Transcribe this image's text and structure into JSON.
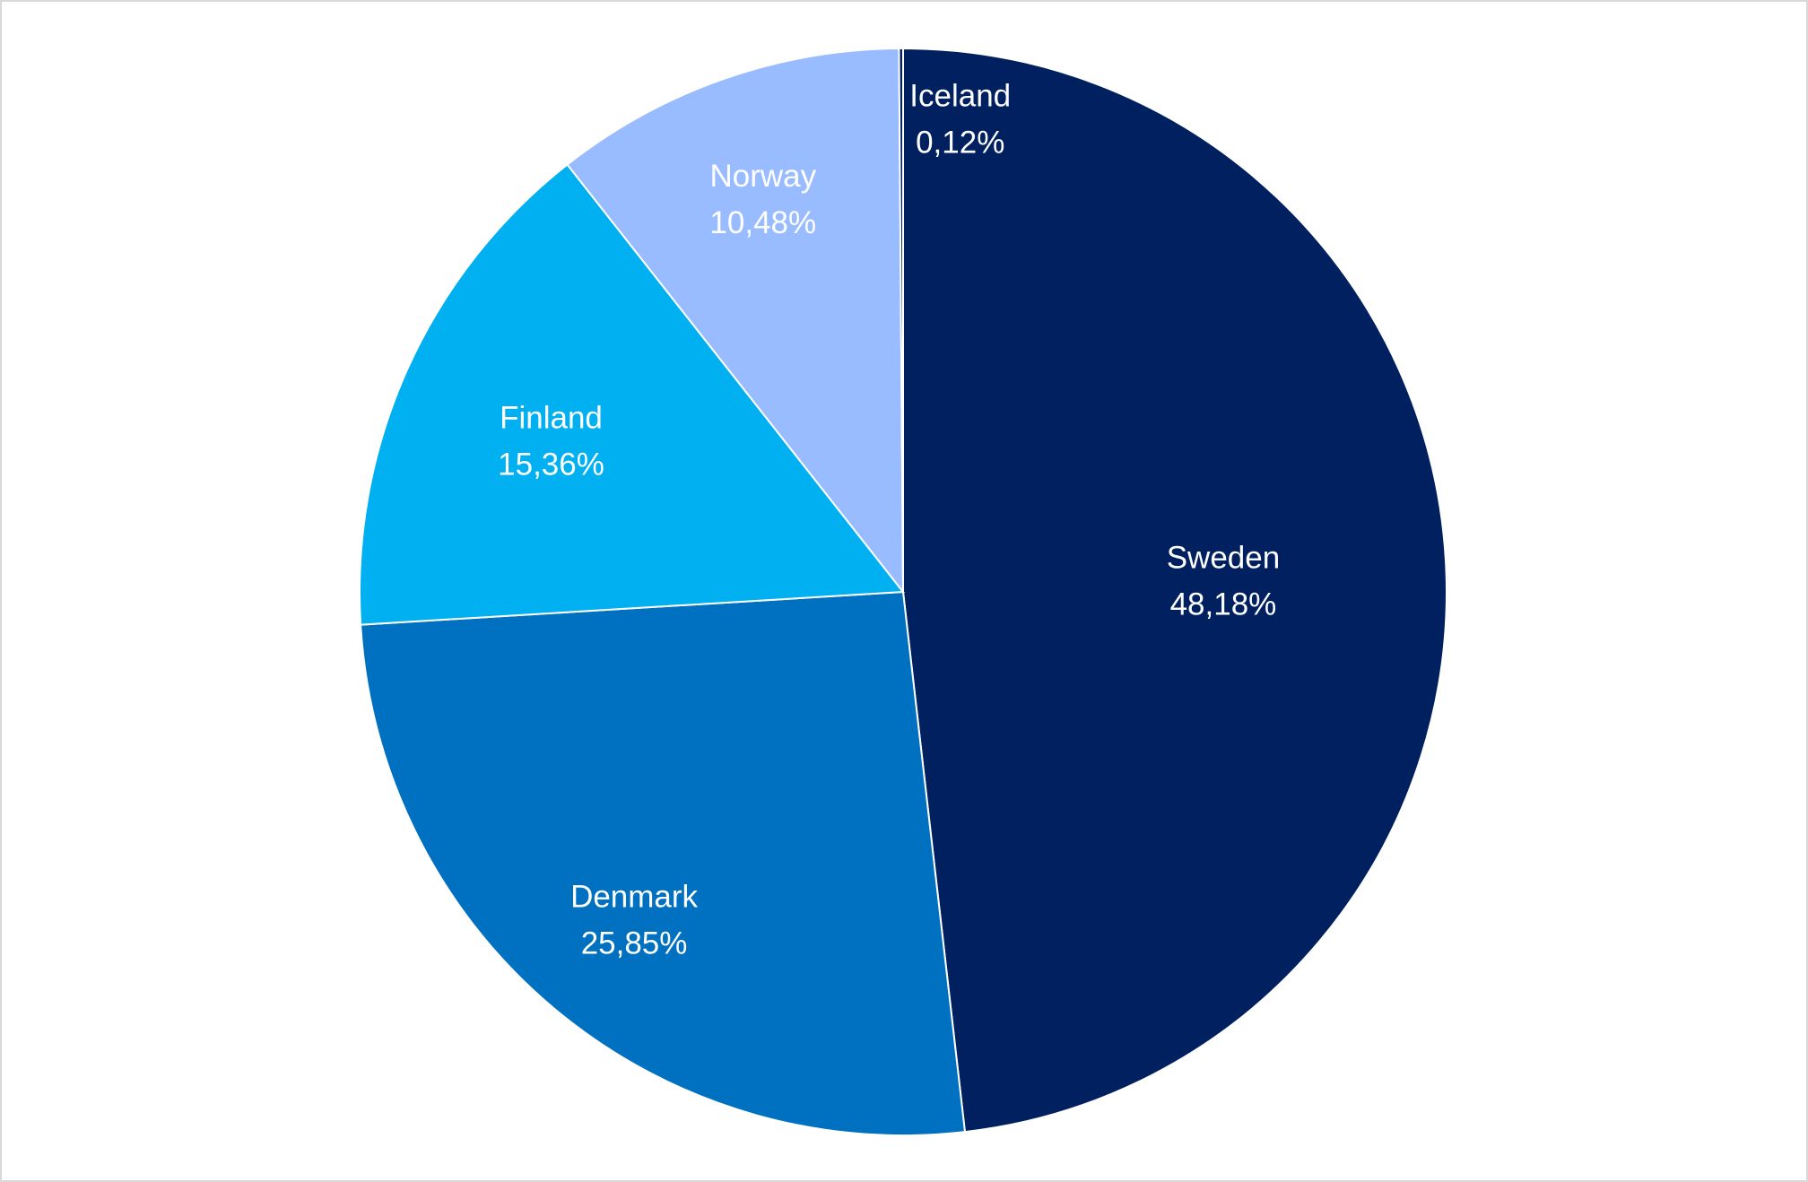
{
  "chart_data": {
    "type": "pie",
    "title": "",
    "slices": [
      {
        "label": "Sweden",
        "value": 48.18,
        "value_label": "48,18%",
        "color": "#002060"
      },
      {
        "label": "Denmark",
        "value": 25.85,
        "value_label": "25,85%",
        "color": "#0070C0"
      },
      {
        "label": "Finland",
        "value": 15.36,
        "value_label": "15,36%",
        "color": "#00B0F0"
      },
      {
        "label": "Norway",
        "value": 10.48,
        "value_label": "10,48%",
        "color": "#99BBFF"
      },
      {
        "label": "Iceland",
        "value": 0.12,
        "value_label": "0,12%",
        "color": "#002060"
      }
    ],
    "start_angle": "12 o'clock",
    "direction": "clockwise",
    "legend": "none",
    "data_labels": "inside"
  }
}
